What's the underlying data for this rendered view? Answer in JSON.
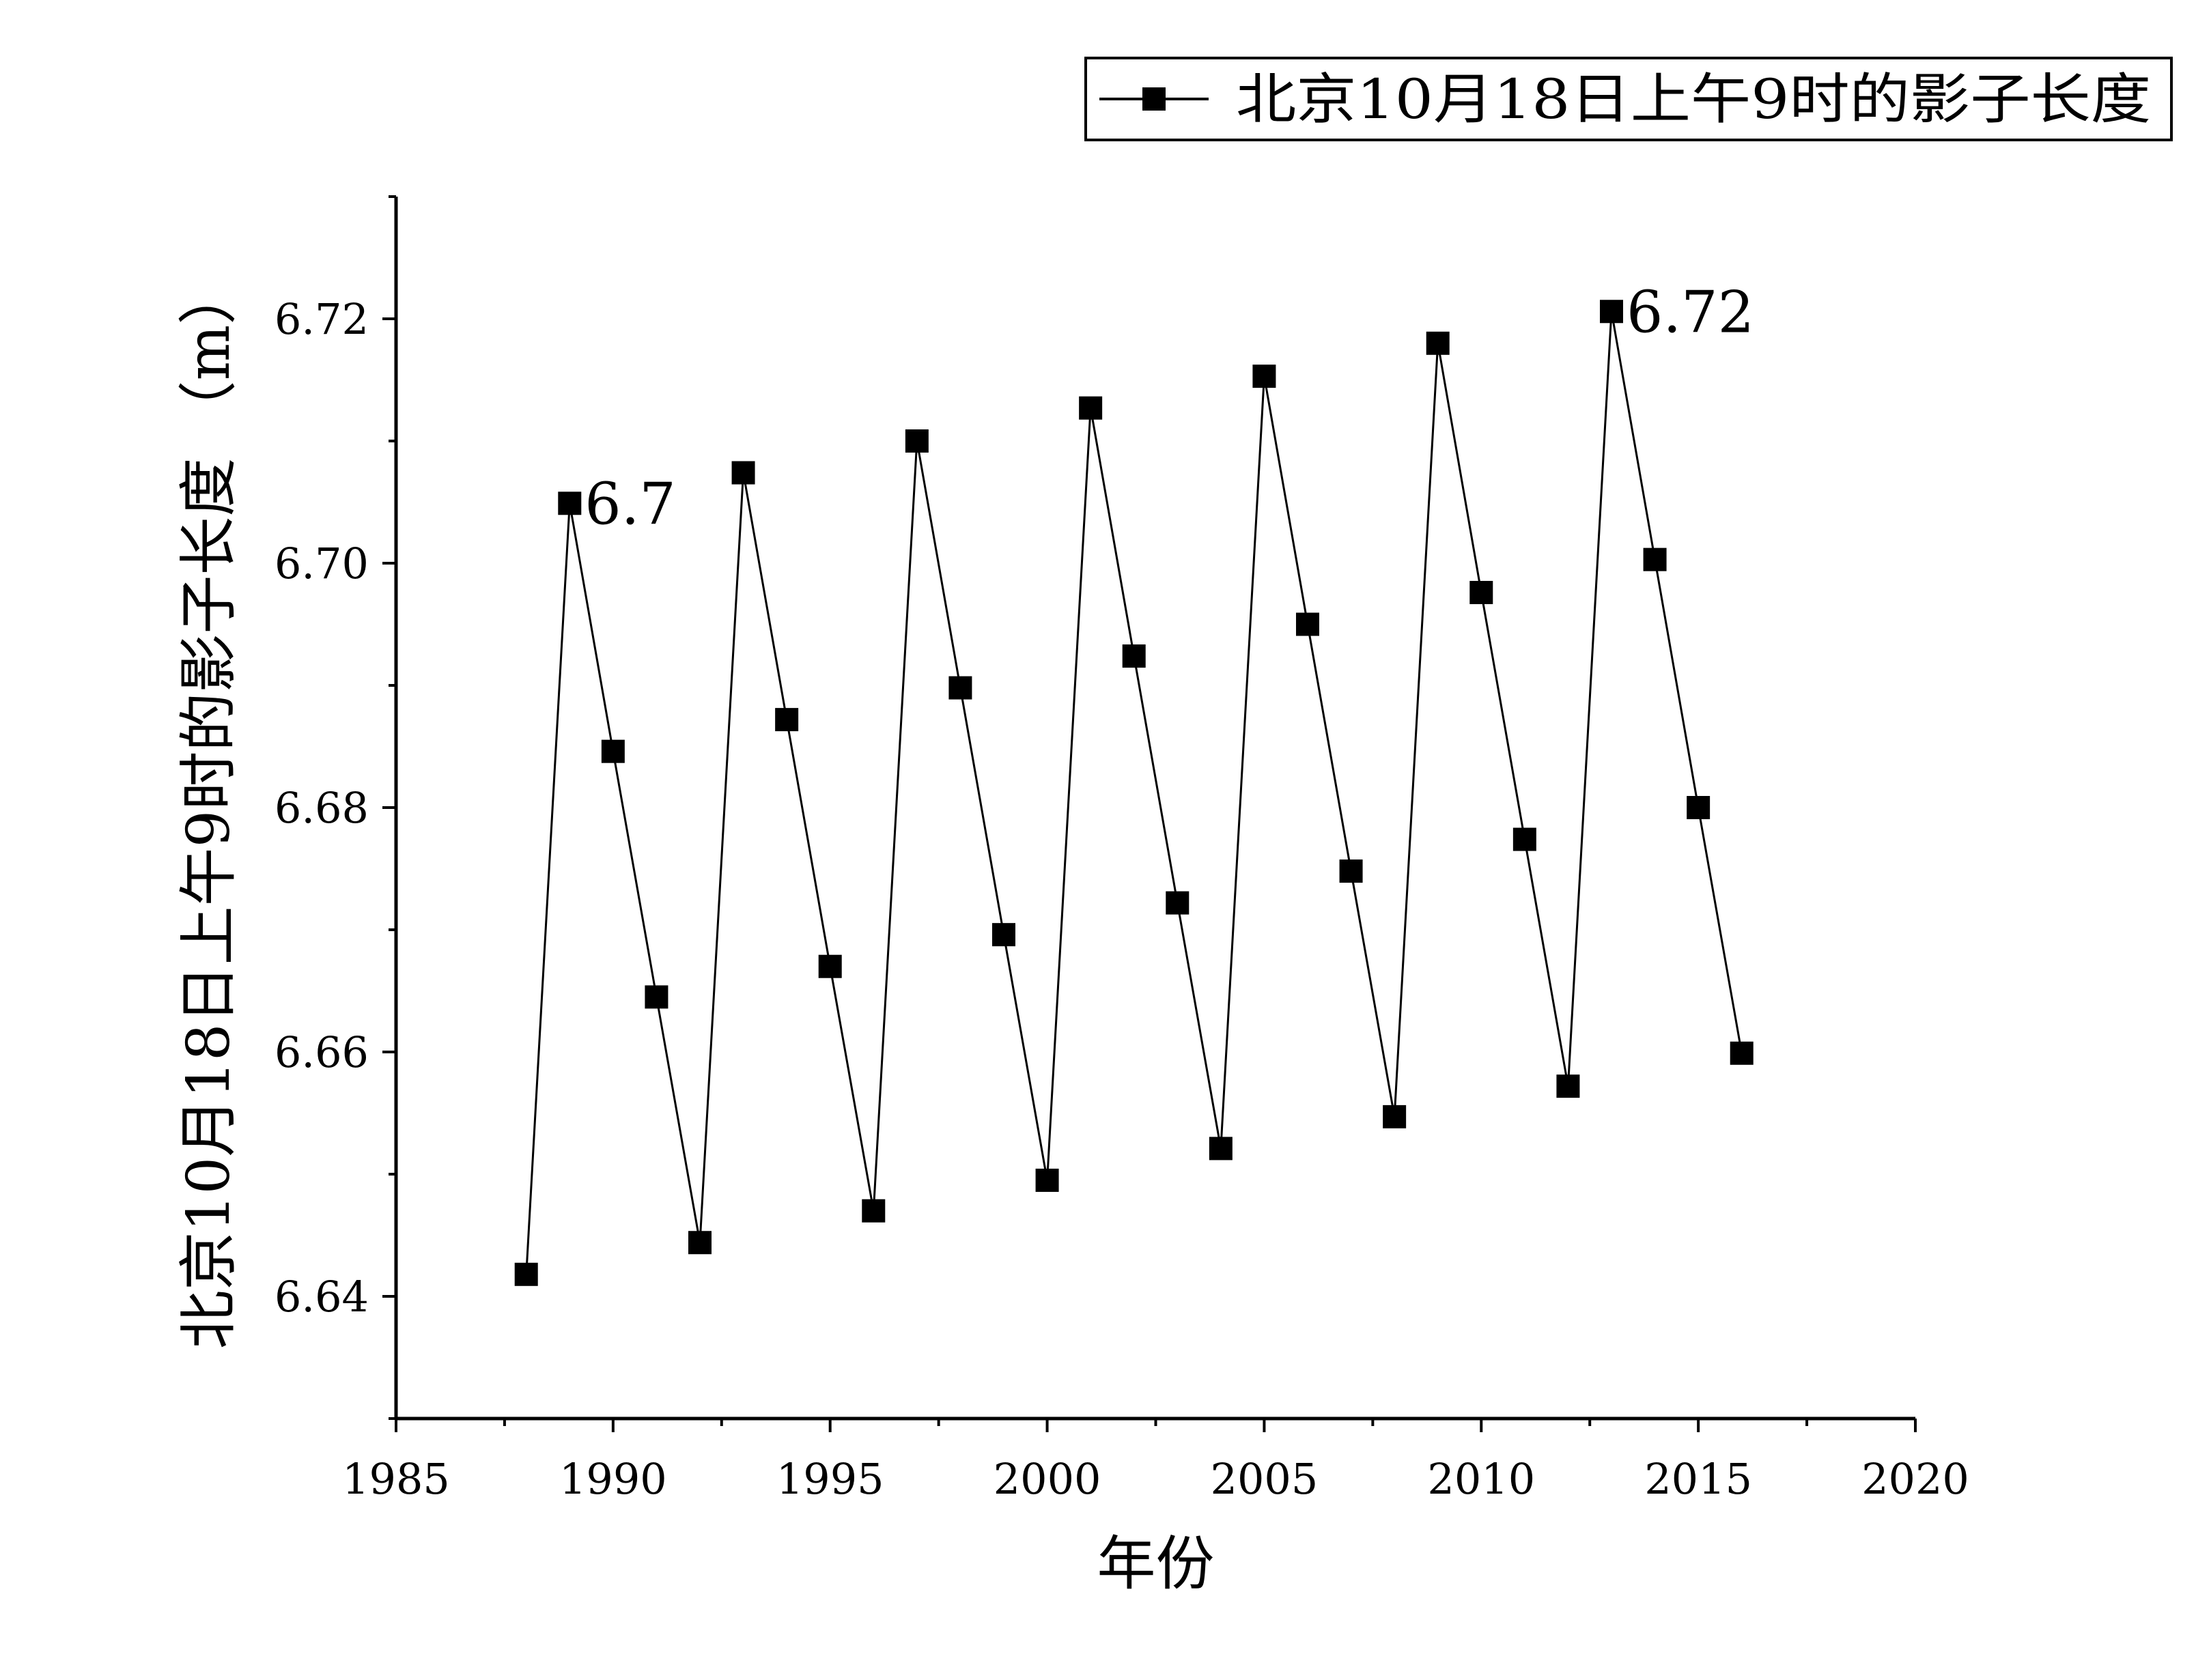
{
  "chart_data": {
    "type": "line",
    "title": "",
    "xlabel": "年份",
    "ylabel": "北京10月18日上午9时的影子长度 （m）",
    "xlim": [
      1985,
      2020
    ],
    "ylim": [
      6.63,
      6.73
    ],
    "x_ticks": [
      1985,
      1990,
      1995,
      2000,
      2005,
      2010,
      2015,
      2020
    ],
    "y_ticks": [
      6.64,
      6.66,
      6.68,
      6.7,
      6.72
    ],
    "y_tick_labels": [
      "6.64",
      "6.66",
      "6.68",
      "6.70",
      "6.72"
    ],
    "grid": false,
    "legend_position": "top-right",
    "series": [
      {
        "name": "北京10月18日上午9时的影子长度",
        "marker": "square",
        "color": "#000000",
        "x": [
          1988,
          1989,
          1990,
          1991,
          1992,
          1993,
          1994,
          1995,
          1996,
          1997,
          1998,
          1999,
          2000,
          2001,
          2002,
          2003,
          2004,
          2005,
          2006,
          2007,
          2008,
          2009,
          2010,
          2011,
          2012,
          2013,
          2014,
          2015,
          2016
        ],
        "values": [
          6.6418,
          6.7049,
          6.6846,
          6.6645,
          6.6444,
          6.7074,
          6.6872,
          6.667,
          6.647,
          6.71,
          6.6898,
          6.6696,
          6.6495,
          6.7127,
          6.6924,
          6.6722,
          6.6521,
          6.7153,
          6.695,
          6.6748,
          6.6547,
          6.718,
          6.6976,
          6.6774,
          6.6572,
          6.7206,
          6.7003,
          6.68,
          6.6599
        ]
      }
    ],
    "annotations": [
      {
        "text": "6.7",
        "x": 1989,
        "y": 6.7049
      },
      {
        "text": "6.72",
        "x": 2013,
        "y": 6.7206
      }
    ]
  }
}
